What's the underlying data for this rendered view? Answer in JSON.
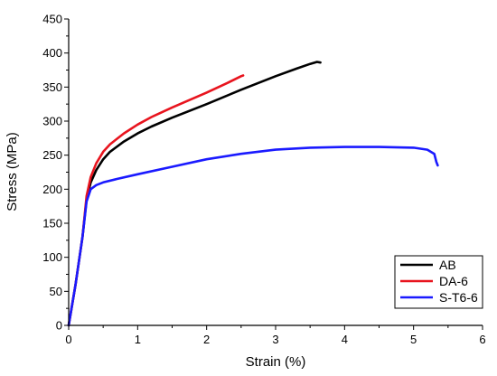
{
  "chart_data": {
    "type": "line",
    "title": "",
    "xlabel": "Strain (%)",
    "ylabel": "Stress (MPa)",
    "xlim": [
      0,
      6
    ],
    "ylim": [
      0,
      450
    ],
    "xticks": [
      "0",
      "1",
      "2",
      "3",
      "4",
      "5",
      "6"
    ],
    "yticks": [
      "0",
      "50",
      "100",
      "150",
      "200",
      "250",
      "300",
      "350",
      "400",
      "450"
    ],
    "grid": false,
    "legend_position": "bottom-right",
    "series": [
      {
        "name": "AB",
        "color": "#000000",
        "x": [
          0,
          0.1,
          0.2,
          0.26,
          0.32,
          0.4,
          0.5,
          0.6,
          0.8,
          1.0,
          1.2,
          1.5,
          2.0,
          2.5,
          3.0,
          3.3,
          3.5,
          3.6,
          3.65
        ],
        "y": [
          0,
          60,
          130,
          185,
          210,
          228,
          244,
          255,
          270,
          282,
          292,
          305,
          325,
          346,
          366,
          377,
          384,
          387,
          386
        ]
      },
      {
        "name": "DA-6",
        "color": "#e8141e",
        "x": [
          0,
          0.1,
          0.2,
          0.26,
          0.32,
          0.4,
          0.5,
          0.6,
          0.8,
          1.0,
          1.2,
          1.5,
          2.0,
          2.3,
          2.5,
          2.53
        ],
        "y": [
          0,
          60,
          130,
          190,
          218,
          238,
          255,
          266,
          282,
          295,
          306,
          320,
          342,
          356,
          366,
          367
        ]
      },
      {
        "name": "S-T6-6",
        "color": "#1a1aff",
        "x": [
          0,
          0.1,
          0.2,
          0.26,
          0.32,
          0.4,
          0.5,
          0.7,
          1.0,
          1.5,
          2.0,
          2.5,
          3.0,
          3.5,
          4.0,
          4.5,
          5.0,
          5.2,
          5.3,
          5.33,
          5.35
        ],
        "y": [
          0,
          60,
          130,
          182,
          200,
          206,
          210,
          215,
          222,
          233,
          244,
          252,
          258,
          261,
          262,
          262,
          261,
          258,
          252,
          240,
          235
        ]
      }
    ]
  }
}
